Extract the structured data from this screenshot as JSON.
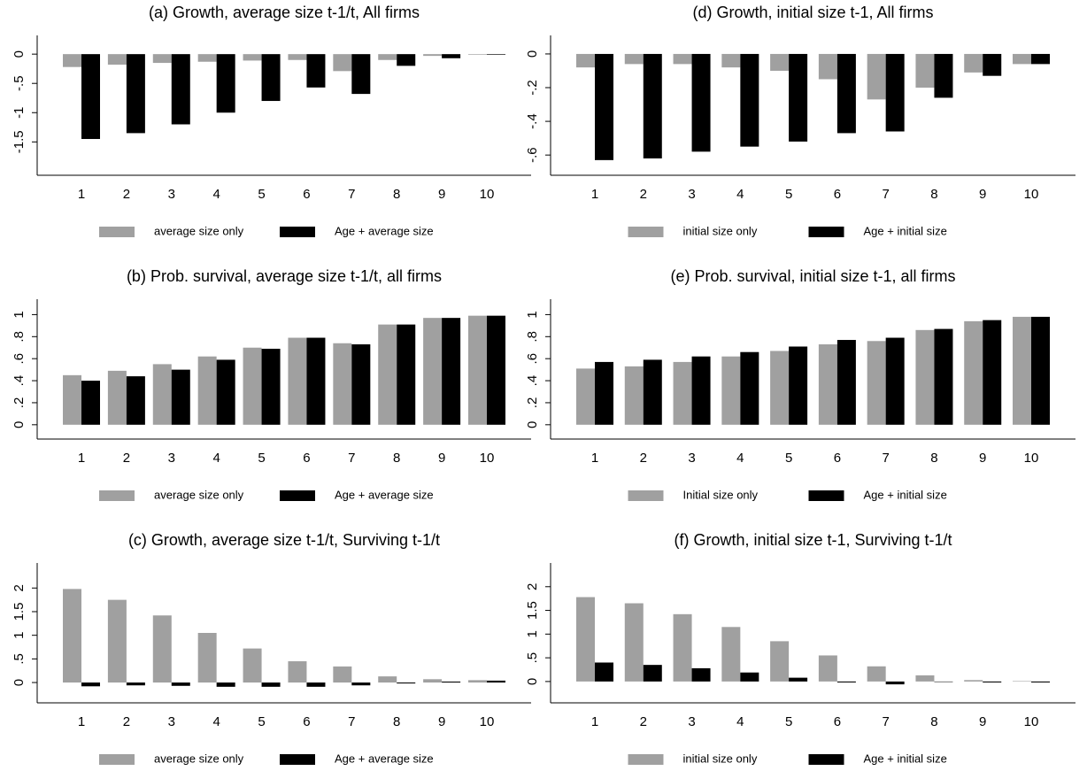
{
  "chart_data": [
    {
      "type": "bar",
      "title": "(a) Growth, average size t-1/t, All firms",
      "categories": [
        1,
        2,
        3,
        4,
        5,
        6,
        7,
        8,
        9,
        10
      ],
      "series": [
        {
          "name": "average size only",
          "color": "#a0a0a0",
          "values": [
            -0.22,
            -0.18,
            -0.15,
            -0.13,
            -0.11,
            -0.1,
            -0.29,
            -0.1,
            -0.03,
            -0.01
          ]
        },
        {
          "name": "Age + average size",
          "color": "#000000",
          "values": [
            -1.45,
            -1.35,
            -1.2,
            -1.0,
            -0.8,
            -0.57,
            -0.68,
            -0.2,
            -0.07,
            -0.01
          ]
        }
      ],
      "ylim": [
        -2.07,
        0.32
      ],
      "yticks": [
        0,
        {
          "value": -0.5,
          "label": "-.5"
        },
        -1,
        -1.5
      ]
    },
    {
      "type": "bar",
      "title": "(b) Prob. survival, average size t-1/t, all firms",
      "categories": [
        1,
        2,
        3,
        4,
        5,
        6,
        7,
        8,
        9,
        10
      ],
      "series": [
        {
          "name": "average size only",
          "color": "#a0a0a0",
          "values": [
            0.45,
            0.49,
            0.55,
            0.62,
            0.7,
            0.79,
            0.74,
            0.91,
            0.97,
            0.99
          ]
        },
        {
          "name": "Age + average size",
          "color": "#000000",
          "values": [
            0.4,
            0.44,
            0.5,
            0.59,
            0.69,
            0.79,
            0.73,
            0.91,
            0.97,
            0.99
          ]
        }
      ],
      "ylim": [
        -0.13,
        1.14
      ],
      "yticks": [
        0,
        {
          "value": 0.2,
          "label": ".2"
        },
        {
          "value": 0.4,
          "label": ".4"
        },
        {
          "value": 0.6,
          "label": ".6"
        },
        {
          "value": 0.8,
          "label": ".8"
        },
        1
      ]
    },
    {
      "type": "bar",
      "title": "(c) Growth, average size t-1/t, Surviving t-1/t",
      "categories": [
        1,
        2,
        3,
        4,
        5,
        6,
        7,
        8,
        9,
        10
      ],
      "series": [
        {
          "name": "average size only",
          "color": "#a0a0a0",
          "values": [
            1.98,
            1.75,
            1.42,
            1.05,
            0.72,
            0.45,
            0.34,
            0.13,
            0.07,
            0.05
          ]
        },
        {
          "name": "Age + average size",
          "color": "#000000",
          "values": [
            -0.08,
            -0.06,
            -0.07,
            -0.09,
            -0.09,
            -0.09,
            -0.06,
            -0.02,
            0.02,
            0.04
          ]
        }
      ],
      "ylim": [
        -0.43,
        2.53
      ],
      "yticks": [
        0,
        {
          "value": 0.5,
          "label": ".5"
        },
        1,
        1.5,
        2
      ]
    },
    {
      "type": "bar",
      "title": "(d) Growth, initial size t-1, All firms",
      "categories": [
        1,
        2,
        3,
        4,
        5,
        6,
        7,
        8,
        9,
        10
      ],
      "series": [
        {
          "name": "initial size only",
          "color": "#a0a0a0",
          "values": [
            -0.08,
            -0.06,
            -0.06,
            -0.08,
            -0.1,
            -0.15,
            -0.27,
            -0.2,
            -0.11,
            -0.06
          ]
        },
        {
          "name": "Age + initial size",
          "color": "#000000",
          "values": [
            -0.63,
            -0.62,
            -0.58,
            -0.55,
            -0.52,
            -0.47,
            -0.46,
            -0.26,
            -0.13,
            -0.06
          ]
        }
      ],
      "ylim": [
        -0.72,
        0.11
      ],
      "yticks": [
        0,
        {
          "value": -0.2,
          "label": "-.2"
        },
        {
          "value": -0.4,
          "label": "-.4"
        },
        {
          "value": -0.6,
          "label": "-.6"
        }
      ]
    },
    {
      "type": "bar",
      "title": "(e) Prob. survival, initial size t-1, all firms",
      "categories": [
        1,
        2,
        3,
        4,
        5,
        6,
        7,
        8,
        9,
        10
      ],
      "series": [
        {
          "name": "Initial size only",
          "color": "#a0a0a0",
          "values": [
            0.51,
            0.53,
            0.57,
            0.62,
            0.67,
            0.73,
            0.76,
            0.86,
            0.94,
            0.98
          ]
        },
        {
          "name": "Age + initial size",
          "color": "#000000",
          "values": [
            0.57,
            0.59,
            0.62,
            0.66,
            0.71,
            0.77,
            0.79,
            0.87,
            0.95,
            0.98
          ]
        }
      ],
      "ylim": [
        -0.13,
        1.14
      ],
      "yticks": [
        0,
        {
          "value": 0.2,
          "label": ".2"
        },
        {
          "value": 0.4,
          "label": ".4"
        },
        {
          "value": 0.6,
          "label": ".6"
        },
        {
          "value": 0.8,
          "label": ".8"
        },
        1
      ]
    },
    {
      "type": "bar",
      "title": "(f) Growth, initial size t-1, Surviving t-1/t",
      "categories": [
        1,
        2,
        3,
        4,
        5,
        6,
        7,
        8,
        9,
        10
      ],
      "series": [
        {
          "name": "initial size only",
          "color": "#a0a0a0",
          "values": [
            1.78,
            1.65,
            1.42,
            1.15,
            0.85,
            0.55,
            0.32,
            0.13,
            0.03,
            0.01
          ]
        },
        {
          "name": "Age + initial size",
          "color": "#000000",
          "values": [
            0.4,
            0.35,
            0.28,
            0.19,
            0.08,
            -0.02,
            -0.06,
            -0.01,
            -0.02,
            -0.02
          ]
        }
      ],
      "ylim": [
        -0.45,
        2.5
      ],
      "yticks": [
        0,
        {
          "value": 0.5,
          "label": ".5"
        },
        1,
        1.5,
        2
      ]
    }
  ]
}
